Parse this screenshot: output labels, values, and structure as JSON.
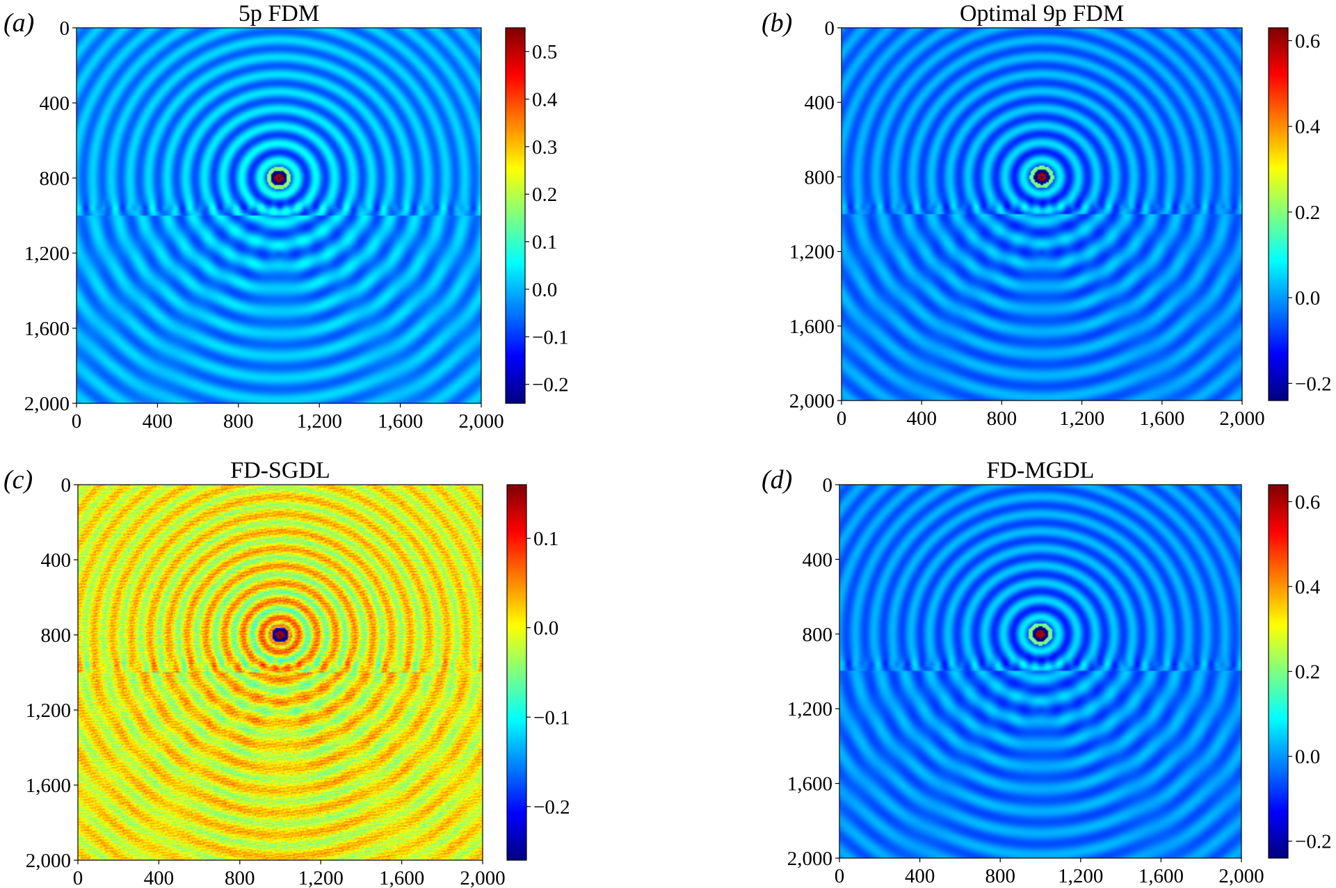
{
  "figure": {
    "description_free": true
  },
  "chart_data": [
    {
      "type": "heatmap",
      "panel_label": "(a)",
      "title": "5p FDM",
      "x_ticks": [
        "0",
        "400",
        "800",
        "1,200",
        "1,600",
        "2,000"
      ],
      "y_ticks": [
        "0",
        "400",
        "800",
        "1,200",
        "1,600",
        "2,000"
      ],
      "xlim": [
        0,
        2000
      ],
      "ylim": [
        0,
        2000
      ],
      "y_inverted": true,
      "colorbar": {
        "colormap": "jet",
        "range": [
          -0.24,
          0.55
        ],
        "ticks": [
          -0.2,
          -0.1,
          0.0,
          0.1,
          0.2,
          0.3,
          0.4,
          0.5
        ],
        "tick_labels": [
          "−0.2",
          "−0.1",
          "0.0",
          "0.1",
          "0.2",
          "0.3",
          "0.4",
          "0.5"
        ]
      },
      "field": {
        "source": [
          1000,
          800
        ],
        "interface_depth": 1000,
        "background_value": 0.0
      }
    },
    {
      "type": "heatmap",
      "panel_label": "(b)",
      "title": "Optimal 9p FDM",
      "x_ticks": [
        "0",
        "400",
        "800",
        "1,200",
        "1,600",
        "2,000"
      ],
      "y_ticks": [
        "0",
        "400",
        "800",
        "1,200",
        "1,600",
        "2,000"
      ],
      "xlim": [
        0,
        2000
      ],
      "ylim": [
        0,
        2000
      ],
      "y_inverted": true,
      "colorbar": {
        "colormap": "jet",
        "range": [
          -0.24,
          0.63
        ],
        "ticks": [
          -0.2,
          0.0,
          0.2,
          0.4,
          0.6
        ],
        "tick_labels": [
          "−0.2",
          "0.0",
          "0.2",
          "0.4",
          "0.6"
        ]
      },
      "field": {
        "source": [
          1000,
          800
        ],
        "interface_depth": 1000,
        "background_value": 0.0
      }
    },
    {
      "type": "heatmap",
      "panel_label": "(c)",
      "title": "FD-SGDL",
      "x_ticks": [
        "0",
        "400",
        "800",
        "1,200",
        "1,600",
        "2,000"
      ],
      "y_ticks": [
        "0",
        "400",
        "800",
        "1,200",
        "1,600",
        "2,000"
      ],
      "xlim": [
        0,
        2000
      ],
      "ylim": [
        0,
        2000
      ],
      "y_inverted": true,
      "colorbar": {
        "colormap": "jet",
        "range": [
          -0.26,
          0.16
        ],
        "ticks": [
          -0.2,
          -0.1,
          0.0,
          0.1
        ],
        "tick_labels": [
          "−0.2",
          "−0.1",
          "0.0",
          "0.1"
        ]
      },
      "field": {
        "source": [
          1000,
          800
        ],
        "interface_depth": 1000,
        "background_value": 0.0
      }
    },
    {
      "type": "heatmap",
      "panel_label": "(d)",
      "title": "FD-MGDL",
      "x_ticks": [
        "0",
        "400",
        "800",
        "1,200",
        "1,600",
        "2,000"
      ],
      "y_ticks": [
        "0",
        "400",
        "800",
        "1,200",
        "1,600",
        "2,000"
      ],
      "xlim": [
        0,
        2000
      ],
      "ylim": [
        0,
        2000
      ],
      "y_inverted": true,
      "colorbar": {
        "colormap": "jet",
        "range": [
          -0.24,
          0.64
        ],
        "ticks": [
          -0.2,
          0.0,
          0.2,
          0.4,
          0.6
        ],
        "tick_labels": [
          "−0.2",
          "0.0",
          "0.2",
          "0.4",
          "0.6"
        ]
      },
      "field": {
        "source": [
          1000,
          800
        ],
        "interface_depth": 1000,
        "background_value": 0.0
      }
    }
  ]
}
